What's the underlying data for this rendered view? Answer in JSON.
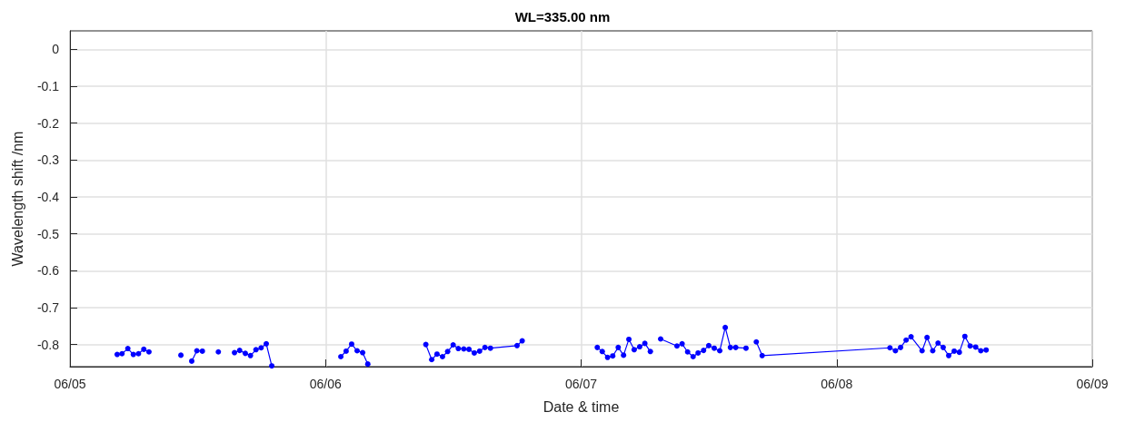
{
  "chart_data": {
    "type": "line",
    "title": "WL=335.00 nm",
    "xlabel": "Date & time",
    "ylabel": "Wavelength shift /nm",
    "x": [
      "--06-05T04:26",
      "--06-05T04:53",
      "--06-05T05:26",
      "--06-05T05:57",
      "--06-05T06:26",
      "--06-05T06:56",
      "--06-05T07:25",
      "--06-05T09:00",
      "--06-05T10:25",
      "--06-05T11:00",
      "--06-05T11:26",
      "--06-05T11:55",
      "--06-05T12:26",
      "--06-05T13:10",
      "--06-05T13:56",
      "--06-05T14:40",
      "--06-05T15:27",
      "--06-05T15:56",
      "--06-05T16:28",
      "--06-05T16:57",
      "--06-05T17:28",
      "--06-05T17:57",
      "--06-05T18:26",
      "--06-05T18:57",
      "--06-05T22:00",
      "--06-06T01:26",
      "--06-06T01:56",
      "--06-06T02:27",
      "--06-06T02:58",
      "--06-06T03:29",
      "--06-06T03:58",
      "--06-06T06:00",
      "--06-06T09:25",
      "--06-06T09:58",
      "--06-06T10:28",
      "--06-06T10:59",
      "--06-06T11:28",
      "--06-06T11:59",
      "--06-06T12:28",
      "--06-06T12:59",
      "--06-06T13:28",
      "--06-06T13:58",
      "--06-06T14:28",
      "--06-06T14:58",
      "--06-06T15:29",
      "--06-06T17:59",
      "--06-06T18:28",
      "--06-06T22:00",
      "--06-07T01:31",
      "--06-07T01:59",
      "--06-07T02:29",
      "--06-07T02:58",
      "--06-07T03:29",
      "--06-07T03:59",
      "--06-07T04:29",
      "--06-07T04:59",
      "--06-07T05:30",
      "--06-07T05:59",
      "--06-07T06:30",
      "--06-07T07:00",
      "--06-07T07:28",
      "--06-07T09:00",
      "--06-07T09:29",
      "--06-07T10:00",
      "--06-07T10:31",
      "--06-07T10:59",
      "--06-07T11:30",
      "--06-07T11:59",
      "--06-07T12:30",
      "--06-07T13:01",
      "--06-07T13:32",
      "--06-07T14:01",
      "--06-07T14:31",
      "--06-07T15:29",
      "--06-07T16:00",
      "--06-07T16:27",
      "--06-07T17:00",
      "--06-08T05:00",
      "--06-08T05:31",
      "--06-08T06:00",
      "--06-08T06:31",
      "--06-08T06:59",
      "--06-08T08:01",
      "--06-08T08:29",
      "--06-08T09:01",
      "--06-08T09:31",
      "--06-08T10:00",
      "--06-08T10:31",
      "--06-08T11:02",
      "--06-08T11:31",
      "--06-08T12:02",
      "--06-08T12:32",
      "--06-08T13:03",
      "--06-08T13:32",
      "--06-08T14:02"
    ],
    "series": [
      {
        "color": "#0000ff",
        "values": [
          -0.827,
          -0.825,
          -0.811,
          -0.827,
          -0.825,
          -0.813,
          -0.82,
          null,
          -0.829,
          null,
          -0.845,
          -0.817,
          -0.818,
          null,
          -0.82,
          null,
          -0.822,
          -0.816,
          -0.824,
          -0.83,
          -0.814,
          -0.809,
          -0.798,
          -0.858,
          null,
          -0.833,
          -0.818,
          -0.799,
          -0.817,
          -0.822,
          -0.853,
          null,
          -0.8,
          -0.841,
          -0.826,
          -0.833,
          -0.819,
          -0.801,
          -0.811,
          -0.812,
          -0.813,
          -0.823,
          -0.818,
          -0.808,
          -0.81,
          -0.803,
          -0.79,
          null,
          -0.808,
          -0.819,
          -0.835,
          -0.831,
          -0.808,
          -0.829,
          -0.786,
          -0.814,
          -0.806,
          -0.797,
          -0.819,
          null,
          -0.785,
          -0.804,
          -0.798,
          -0.82,
          -0.833,
          -0.823,
          -0.816,
          -0.803,
          -0.81,
          -0.817,
          -0.754,
          -0.808,
          -0.808,
          -0.81,
          null,
          -0.793,
          -0.83,
          -0.809,
          -0.817,
          -0.808,
          -0.788,
          -0.779,
          -0.817,
          -0.781,
          -0.817,
          -0.796,
          -0.808,
          -0.83,
          -0.818,
          -0.821,
          -0.778,
          -0.804,
          -0.807,
          -0.817,
          -0.815
        ]
      }
    ],
    "xlim": [
      "--06-05",
      "--06-09"
    ],
    "xticks": [
      {
        "value": "--06-05",
        "label": "06/05"
      },
      {
        "value": "--06-06",
        "label": "06/06"
      },
      {
        "value": "--06-07",
        "label": "06/07"
      },
      {
        "value": "--06-08",
        "label": "06/08"
      },
      {
        "value": "--06-09",
        "label": "06/09"
      }
    ],
    "ylim": [
      -0.86,
      0.05
    ],
    "yticks": [
      0,
      -0.1,
      -0.2,
      -0.3,
      -0.4,
      -0.5,
      -0.6,
      -0.7,
      -0.8
    ],
    "grid": true,
    "legend": false,
    "marker": "circle",
    "line_style": "solid"
  }
}
